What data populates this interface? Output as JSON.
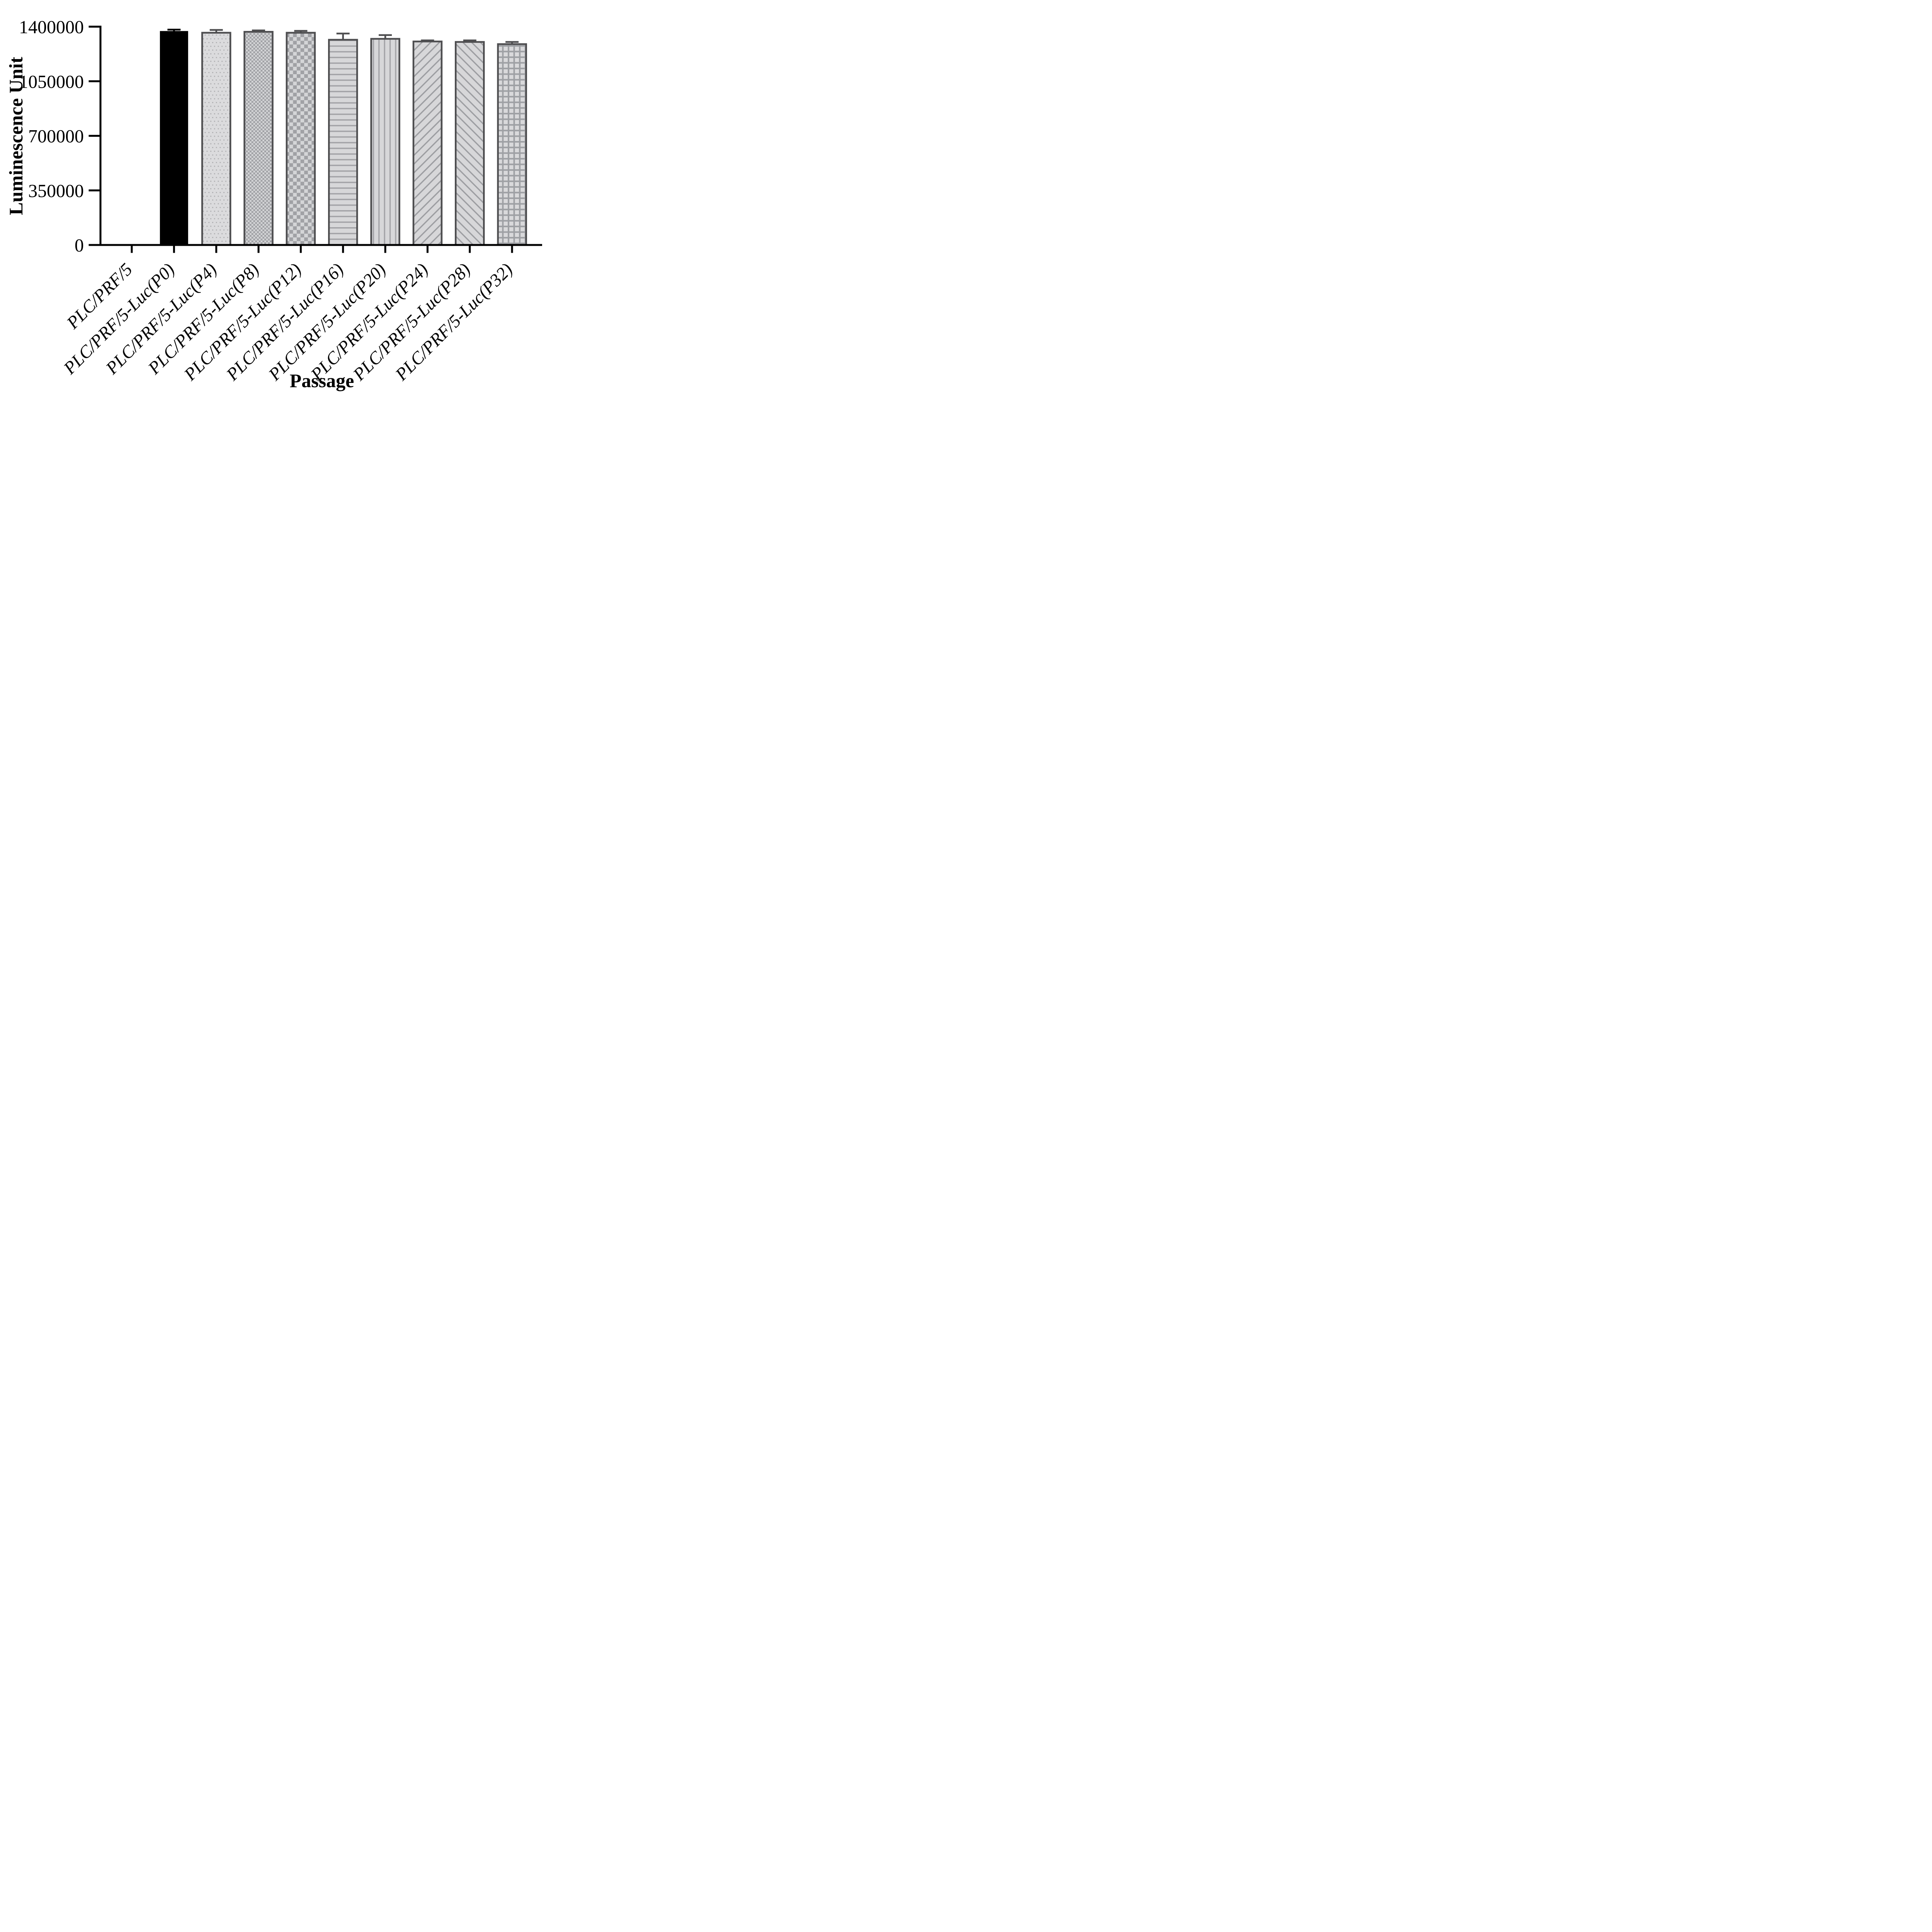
{
  "figure": {
    "background_color": "#ffffff",
    "axis_color": "#000000",
    "bar_border_color": "#4E4E50",
    "bar_base_fill": "#D7D7D9",
    "pattern_ink_color": "#A0A1A5",
    "first_bar_color": "#000000"
  },
  "chart_data": {
    "type": "bar",
    "title": "",
    "xlabel": "Passage",
    "ylabel": "Luminescence Unit",
    "categories": [
      "PLC/PRF/5",
      "PLC/PRF/5-Luc(P0)",
      "PLC/PRF/5-Luc(P4)",
      "PLC/PRF/5-Luc(P8)",
      "PLC/PRF/5-Luc(P12)",
      "PLC/PRF/5-Luc(P16)",
      "PLC/PRF/5-Luc(P20)",
      "PLC/PRF/5-Luc(P24)",
      "PLC/PRF/5-Luc(P28)",
      "PLC/PRF/5-Luc(P32)"
    ],
    "values": [
      0,
      1372000,
      1361000,
      1367000,
      1361000,
      1316000,
      1322000,
      1305000,
      1302000,
      1288000
    ],
    "error_sd_upper": [
      0,
      9000,
      18000,
      9000,
      12000,
      40000,
      24000,
      7000,
      10000,
      14000
    ],
    "bar_patterns": [
      "none",
      "solid",
      "dots",
      "checker-fine",
      "checker-coarse",
      "horizontal-lines",
      "vertical-lines",
      "diagonal-up",
      "diagonal-down",
      "grid"
    ],
    "ylim": [
      0,
      1400000
    ],
    "yticks": [
      0,
      350000,
      700000,
      1050000,
      1400000
    ],
    "ytick_labels": [
      "0",
      "350000",
      "700000",
      "1050000",
      "1400000"
    ],
    "grid": false,
    "legend_position": "none",
    "error_bars": "upper-only-with-cap",
    "x_label_rotation_deg": 45
  }
}
